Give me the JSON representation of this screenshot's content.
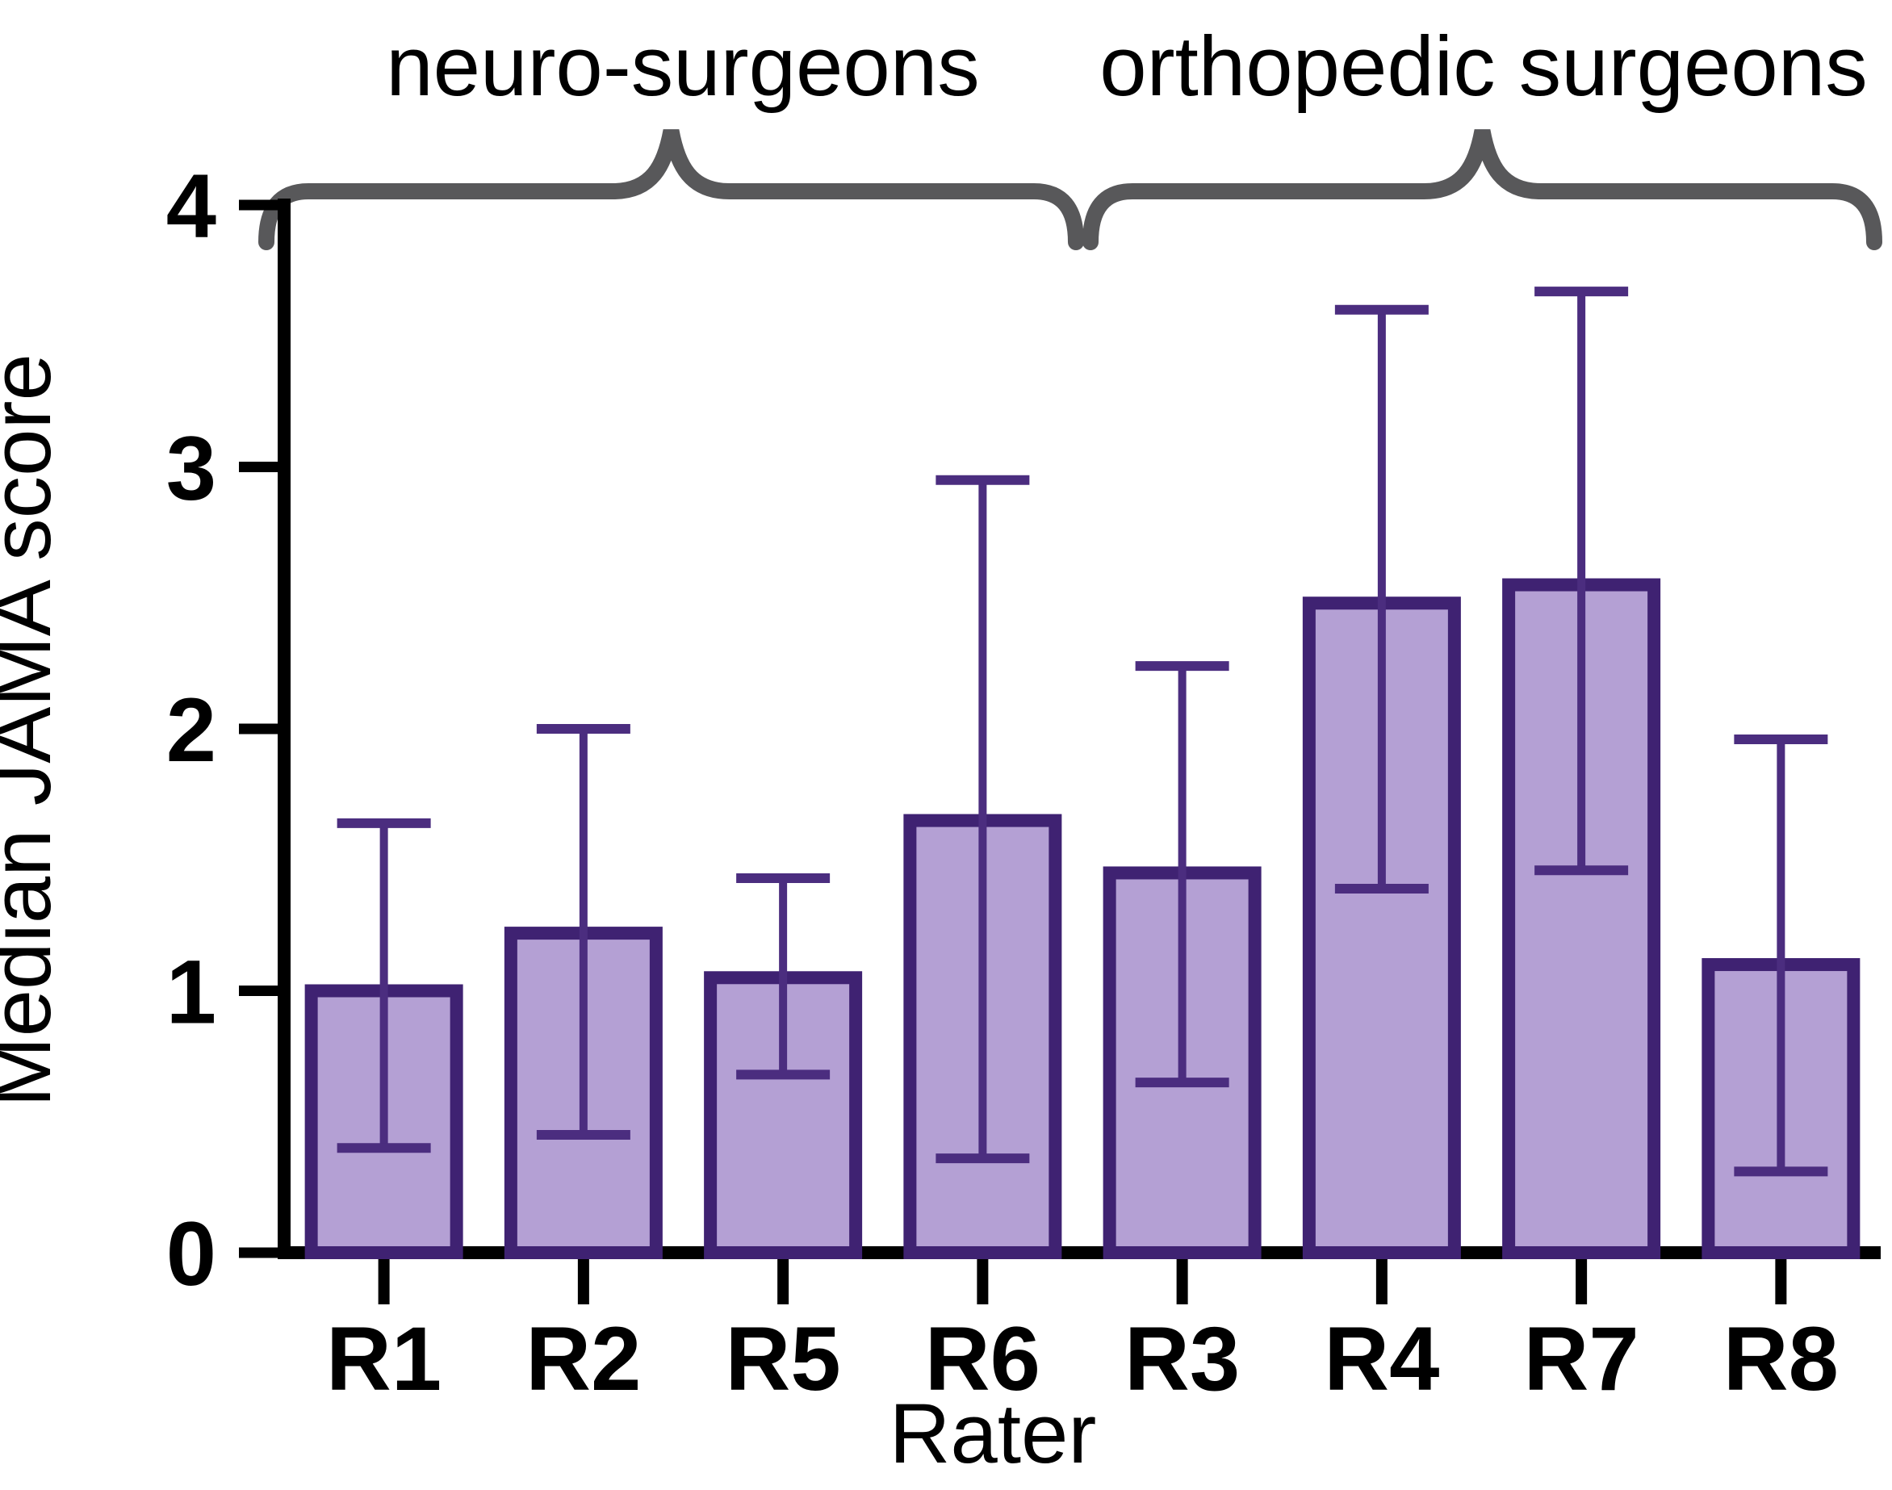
{
  "figure": {
    "background": "#ffffff"
  },
  "chart_data": {
    "type": "bar",
    "title": "",
    "xlabel": "Rater",
    "ylabel": "Median JAMA score",
    "categories": [
      "R1",
      "R2",
      "R5",
      "R6",
      "R3",
      "R4",
      "R7",
      "R8"
    ],
    "values": [
      1.0,
      1.22,
      1.05,
      1.65,
      1.45,
      2.48,
      2.55,
      1.1
    ],
    "error_low": [
      0.4,
      0.45,
      0.68,
      0.36,
      0.65,
      1.39,
      1.46,
      0.31
    ],
    "error_high": [
      1.64,
      2.0,
      1.43,
      2.95,
      2.24,
      3.6,
      3.67,
      1.96
    ],
    "ylim": [
      0,
      4
    ],
    "yticks": [
      0,
      1,
      2,
      3,
      4
    ],
    "grid": false,
    "legend": "none",
    "groups": [
      {
        "label": "neuro-surgeons",
        "start": 0,
        "end": 3
      },
      {
        "label": "orthopedic surgeons",
        "start": 4,
        "end": 7
      }
    ],
    "colors": {
      "bar_fill": "#b4a0d4",
      "bar_border": "#3f2272",
      "error_bar": "#4b2d7f",
      "axis": "#000000",
      "brace": "#58585a",
      "text": "#000000",
      "background": "#ffffff"
    }
  }
}
